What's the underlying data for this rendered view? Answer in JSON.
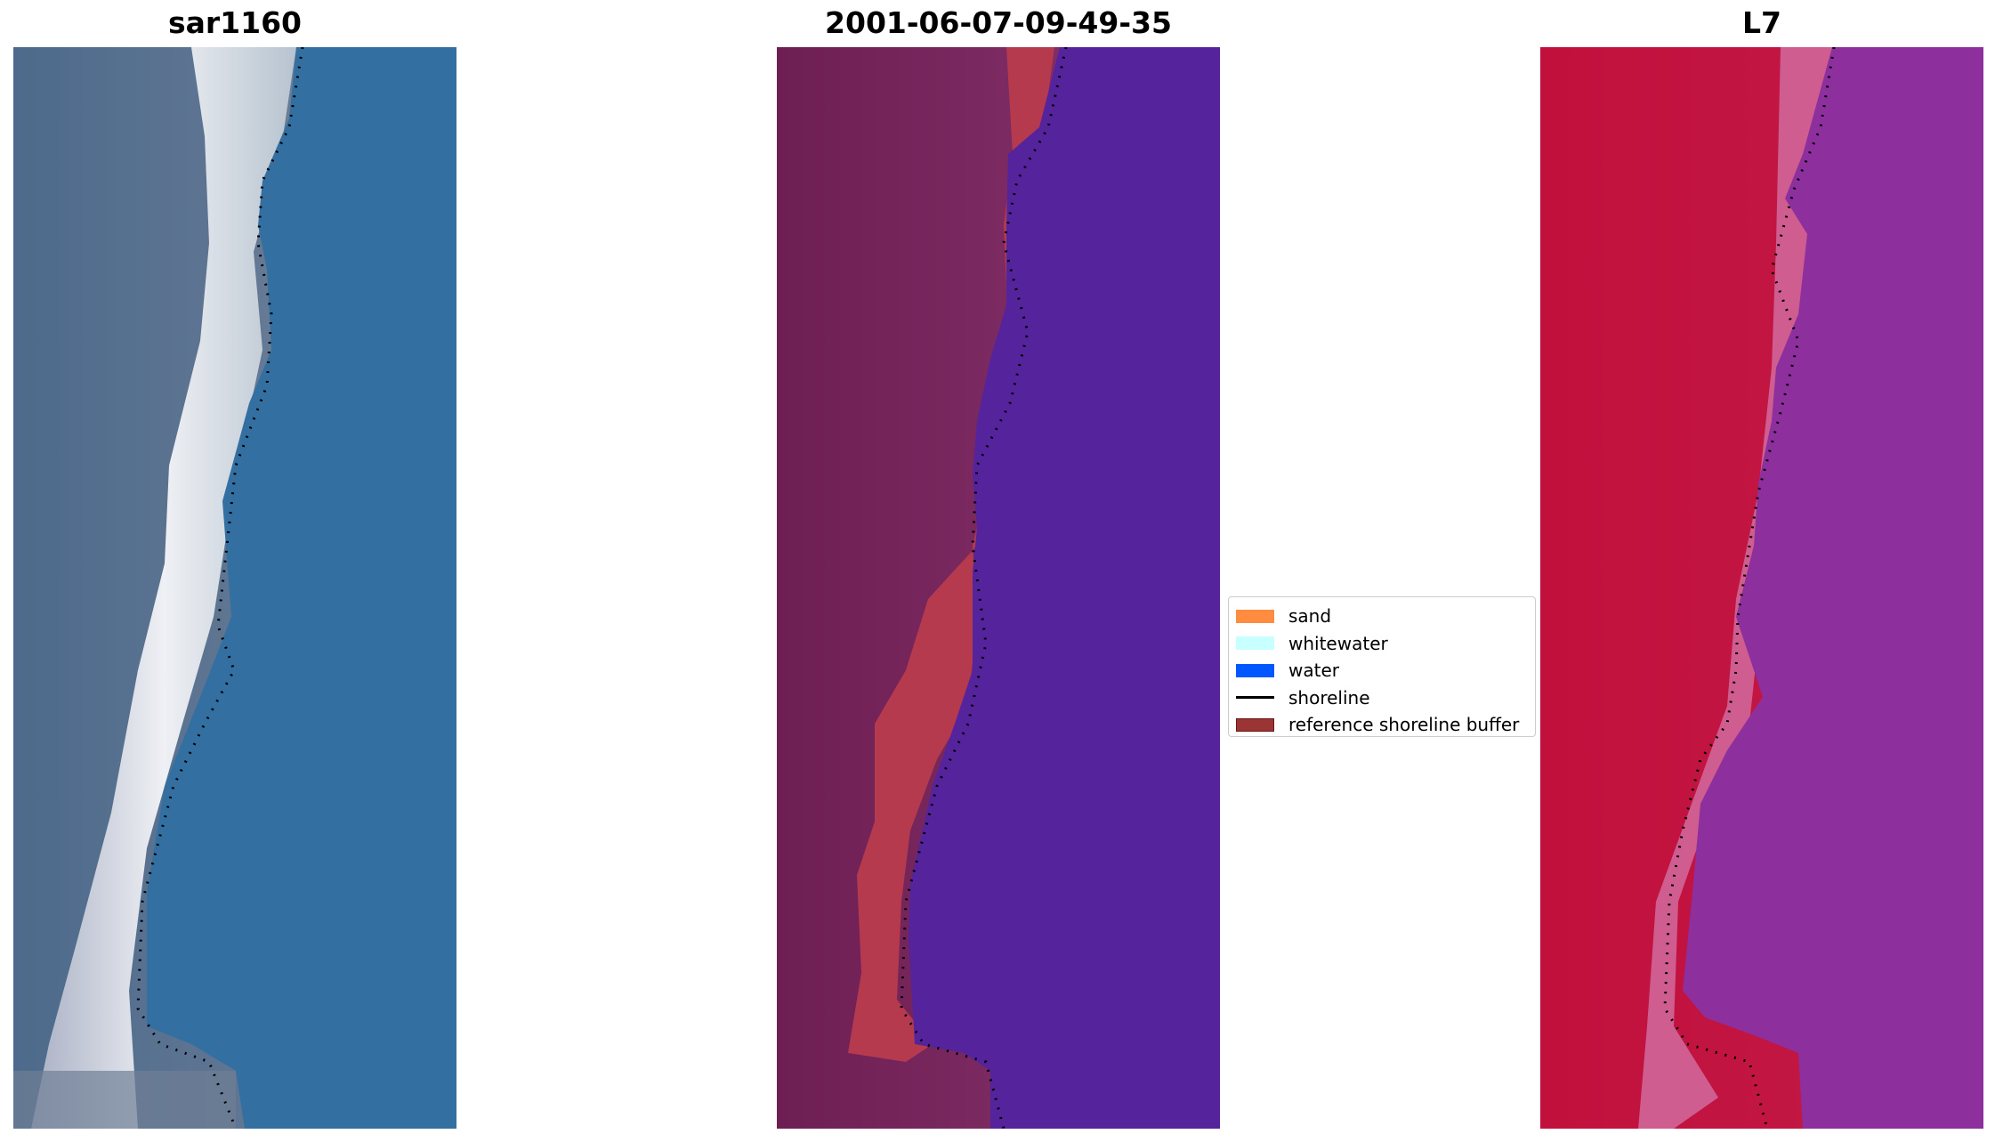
{
  "panels": [
    {
      "title": "sar1160"
    },
    {
      "title": "2001-06-07-09-49-35"
    },
    {
      "title": "L7"
    }
  ],
  "legend": [
    {
      "label": "sand",
      "color": "#ff8c3f",
      "kind": "patch"
    },
    {
      "label": "whitewater",
      "color": "#c8ffff",
      "kind": "patch"
    },
    {
      "label": "water",
      "color": "#0057ff",
      "kind": "patch"
    },
    {
      "label": "shoreline",
      "color": "#000000",
      "kind": "line"
    },
    {
      "label": "reference shoreline buffer",
      "color": "#9b3434",
      "kind": "patch-edged"
    }
  ]
}
